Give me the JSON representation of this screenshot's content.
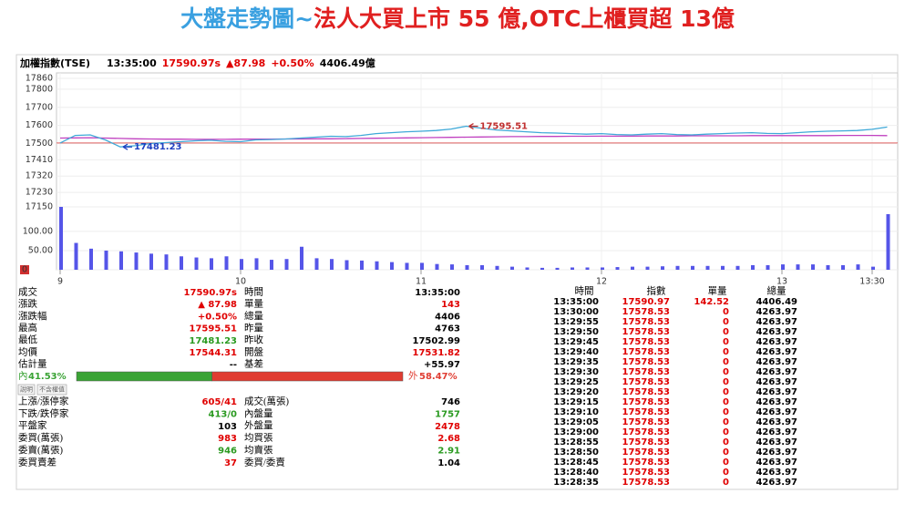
{
  "title": {
    "left": "大盤走勢圖~",
    "right": "法人大買上市 55 億,OTC上櫃買超 13億",
    "colors": [
      "#3aa0e0",
      "#e02020"
    ]
  },
  "header": {
    "index_name": "加權指數(TSE)",
    "time": "13:35:00",
    "price": "17590.97s",
    "change": "▲87.98",
    "percent": "+0.50%",
    "volume": "4406.49億",
    "colors": [
      "#000000",
      "#000000",
      "#e00000",
      "#e00000",
      "#e00000",
      "#000000"
    ]
  },
  "chart_data": {
    "type": "line",
    "x": [
      0,
      5,
      10,
      15,
      20,
      25,
      30,
      35,
      40,
      45,
      50,
      55,
      60,
      65,
      70,
      75,
      80,
      85,
      90,
      95,
      100,
      105,
      110,
      115,
      120,
      125,
      130,
      135,
      140,
      145,
      150,
      155,
      160,
      165,
      170,
      175,
      180,
      185,
      190,
      195,
      200,
      205,
      210,
      215,
      220,
      225,
      230,
      235,
      240,
      245,
      250,
      255,
      260,
      265,
      270,
      275
    ],
    "series": [
      {
        "color": "#3fa9d8",
        "values": [
          17503,
          17545,
          17548,
          17520,
          17481.23,
          17488,
          17500,
          17505,
          17510,
          17515,
          17518,
          17512,
          17510,
          17520,
          17522,
          17525,
          17530,
          17535,
          17540,
          17538,
          17545,
          17555,
          17560,
          17565,
          17568,
          17572,
          17580,
          17595.51,
          17585,
          17575,
          17570,
          17565,
          17560,
          17558,
          17555,
          17552,
          17555,
          17550,
          17548,
          17552,
          17555,
          17550,
          17548,
          17552,
          17555,
          17558,
          17560,
          17556,
          17555,
          17560,
          17565,
          17568,
          17570,
          17572,
          17578.53,
          17590.97
        ]
      },
      {
        "color": "#c040c0",
        "values": [
          17530,
          17531,
          17532,
          17530,
          17528,
          17526,
          17525,
          17524,
          17524,
          17523,
          17523,
          17523,
          17524,
          17524,
          17524,
          17525,
          17525,
          17526,
          17526,
          17527,
          17528,
          17529,
          17530,
          17531,
          17532,
          17533,
          17534,
          17535,
          17536,
          17537,
          17538,
          17538,
          17539,
          17539,
          17540,
          17540,
          17541,
          17541,
          17541,
          17542,
          17542,
          17542,
          17543,
          17543,
          17543,
          17543,
          17544,
          17544,
          17544,
          17544,
          17544,
          17544,
          17545,
          17545,
          17545,
          17544
        ]
      }
    ],
    "xlim": [
      0,
      280
    ],
    "xticks": [
      {
        "value": 0,
        "label": "9"
      },
      {
        "value": 60,
        "label": "10"
      },
      {
        "value": 120,
        "label": "11"
      },
      {
        "value": 180,
        "label": "12"
      },
      {
        "value": 240,
        "label": "13"
      },
      {
        "value": 270,
        "label": "13:30"
      }
    ],
    "ylim": [
      17150,
      17860
    ],
    "yticks": [
      17150,
      17230,
      17320,
      17410,
      17500,
      17600,
      17700,
      17800,
      17860
    ],
    "reference": 17502.99,
    "reference_color": "#e06060",
    "annotations": [
      {
        "label": "17595.51",
        "value": 17595.51,
        "x": 135,
        "color": "#c03030"
      },
      {
        "label": "17481.23",
        "value": 17481.23,
        "x": 20,
        "color": "#2040c0"
      }
    ],
    "volume": {
      "type": "bar",
      "color": "#5555e8",
      "values": [
        164,
        70,
        55,
        50,
        48,
        45,
        42,
        40,
        35,
        32,
        30,
        35,
        28,
        30,
        26,
        28,
        60,
        30,
        28,
        25,
        24,
        22,
        20,
        18,
        18,
        15,
        14,
        12,
        12,
        10,
        8,
        6,
        5,
        5,
        6,
        6,
        6,
        7,
        8,
        8,
        9,
        10,
        10,
        10,
        10,
        10,
        12,
        12,
        14,
        14,
        14,
        12,
        12,
        14,
        8,
        145
      ],
      "ylim": [
        0,
        164
      ],
      "yticks": [
        0,
        {
          "value": 50,
          "label": "50.00"
        },
        {
          "value": 100,
          "label": "100.00"
        }
      ]
    }
  },
  "quote_table": {
    "rows": [
      [
        "成交",
        "17590.97s",
        "時間",
        "13:35:00"
      ],
      [
        "漲跌",
        "▲ 87.98",
        "單量",
        "143"
      ],
      [
        "漲跌幅",
        "+0.50%",
        "總量",
        "4406"
      ],
      [
        "最高",
        "17595.51",
        "昨量",
        "4763"
      ],
      [
        "最低",
        "17481.23",
        "昨收",
        "17502.99"
      ],
      [
        "均價",
        "17544.31",
        "開盤",
        "17531.82"
      ],
      [
        "估計量",
        "--",
        "基差",
        "+55.97"
      ]
    ],
    "value_colors": [
      [
        "#e00000",
        "#000000"
      ],
      [
        "#e00000",
        "#e00000"
      ],
      [
        "#e00000",
        "#000000"
      ],
      [
        "#e00000",
        "#000000"
      ],
      [
        "#2a9a20",
        "#000000"
      ],
      [
        "#e00000",
        "#e00000"
      ],
      [
        "#000000",
        "#000000"
      ]
    ]
  },
  "ratio": {
    "inner_label": "內",
    "inner_value": 41.53,
    "inner_text": "41.53%",
    "outer_label": "外",
    "outer_value": 58.47,
    "outer_text": "58.47%",
    "colors": [
      "#3aa335",
      "#e03c31"
    ]
  },
  "buttons": [
    "說明",
    "不含權值"
  ],
  "breadth_table": {
    "rows": [
      [
        "上漲/漲停家",
        "605/41",
        "成交(萬張)",
        "746"
      ],
      [
        "下跌/跌停家",
        "413/0",
        "內盤量",
        "1757"
      ],
      [
        "平盤家",
        "103",
        "外盤量",
        "2478"
      ],
      [
        "委買(萬張)",
        "983",
        "均買張",
        "2.68"
      ],
      [
        "委賣(萬張)",
        "946",
        "均賣張",
        "2.91"
      ],
      [
        "委買賣差",
        "37",
        "委買/委賣",
        "1.04"
      ]
    ],
    "value_colors": [
      [
        "#e00000",
        "#000000"
      ],
      [
        "#2a9a20",
        "#2a9a20"
      ],
      [
        "#000000",
        "#e00000"
      ],
      [
        "#e00000",
        "#e00000"
      ],
      [
        "#2a9a20",
        "#2a9a20"
      ],
      [
        "#e00000",
        "#000000"
      ]
    ]
  },
  "tick_table": {
    "header": [
      "時間",
      "指數",
      "單量",
      "總量"
    ],
    "column_colors": [
      "#000000",
      "#e00000",
      "#e00000",
      "#000000"
    ],
    "rows": [
      [
        "13:35:00",
        "17590.97",
        "142.52",
        "4406.49"
      ],
      [
        "13:30:00",
        "17578.53",
        "0",
        "4263.97"
      ],
      [
        "13:29:55",
        "17578.53",
        "0",
        "4263.97"
      ],
      [
        "13:29:50",
        "17578.53",
        "0",
        "4263.97"
      ],
      [
        "13:29:45",
        "17578.53",
        "0",
        "4263.97"
      ],
      [
        "13:29:40",
        "17578.53",
        "0",
        "4263.97"
      ],
      [
        "13:29:35",
        "17578.53",
        "0",
        "4263.97"
      ],
      [
        "13:29:30",
        "17578.53",
        "0",
        "4263.97"
      ],
      [
        "13:29:25",
        "17578.53",
        "0",
        "4263.97"
      ],
      [
        "13:29:20",
        "17578.53",
        "0",
        "4263.97"
      ],
      [
        "13:29:15",
        "17578.53",
        "0",
        "4263.97"
      ],
      [
        "13:29:10",
        "17578.53",
        "0",
        "4263.97"
      ],
      [
        "13:29:05",
        "17578.53",
        "0",
        "4263.97"
      ],
      [
        "13:29:00",
        "17578.53",
        "0",
        "4263.97"
      ],
      [
        "13:28:55",
        "17578.53",
        "0",
        "4263.97"
      ],
      [
        "13:28:50",
        "17578.53",
        "0",
        "4263.97"
      ],
      [
        "13:28:45",
        "17578.53",
        "0",
        "4263.97"
      ],
      [
        "13:28:40",
        "17578.53",
        "0",
        "4263.97"
      ],
      [
        "13:28:35",
        "17578.53",
        "0",
        "4263.97"
      ]
    ]
  }
}
